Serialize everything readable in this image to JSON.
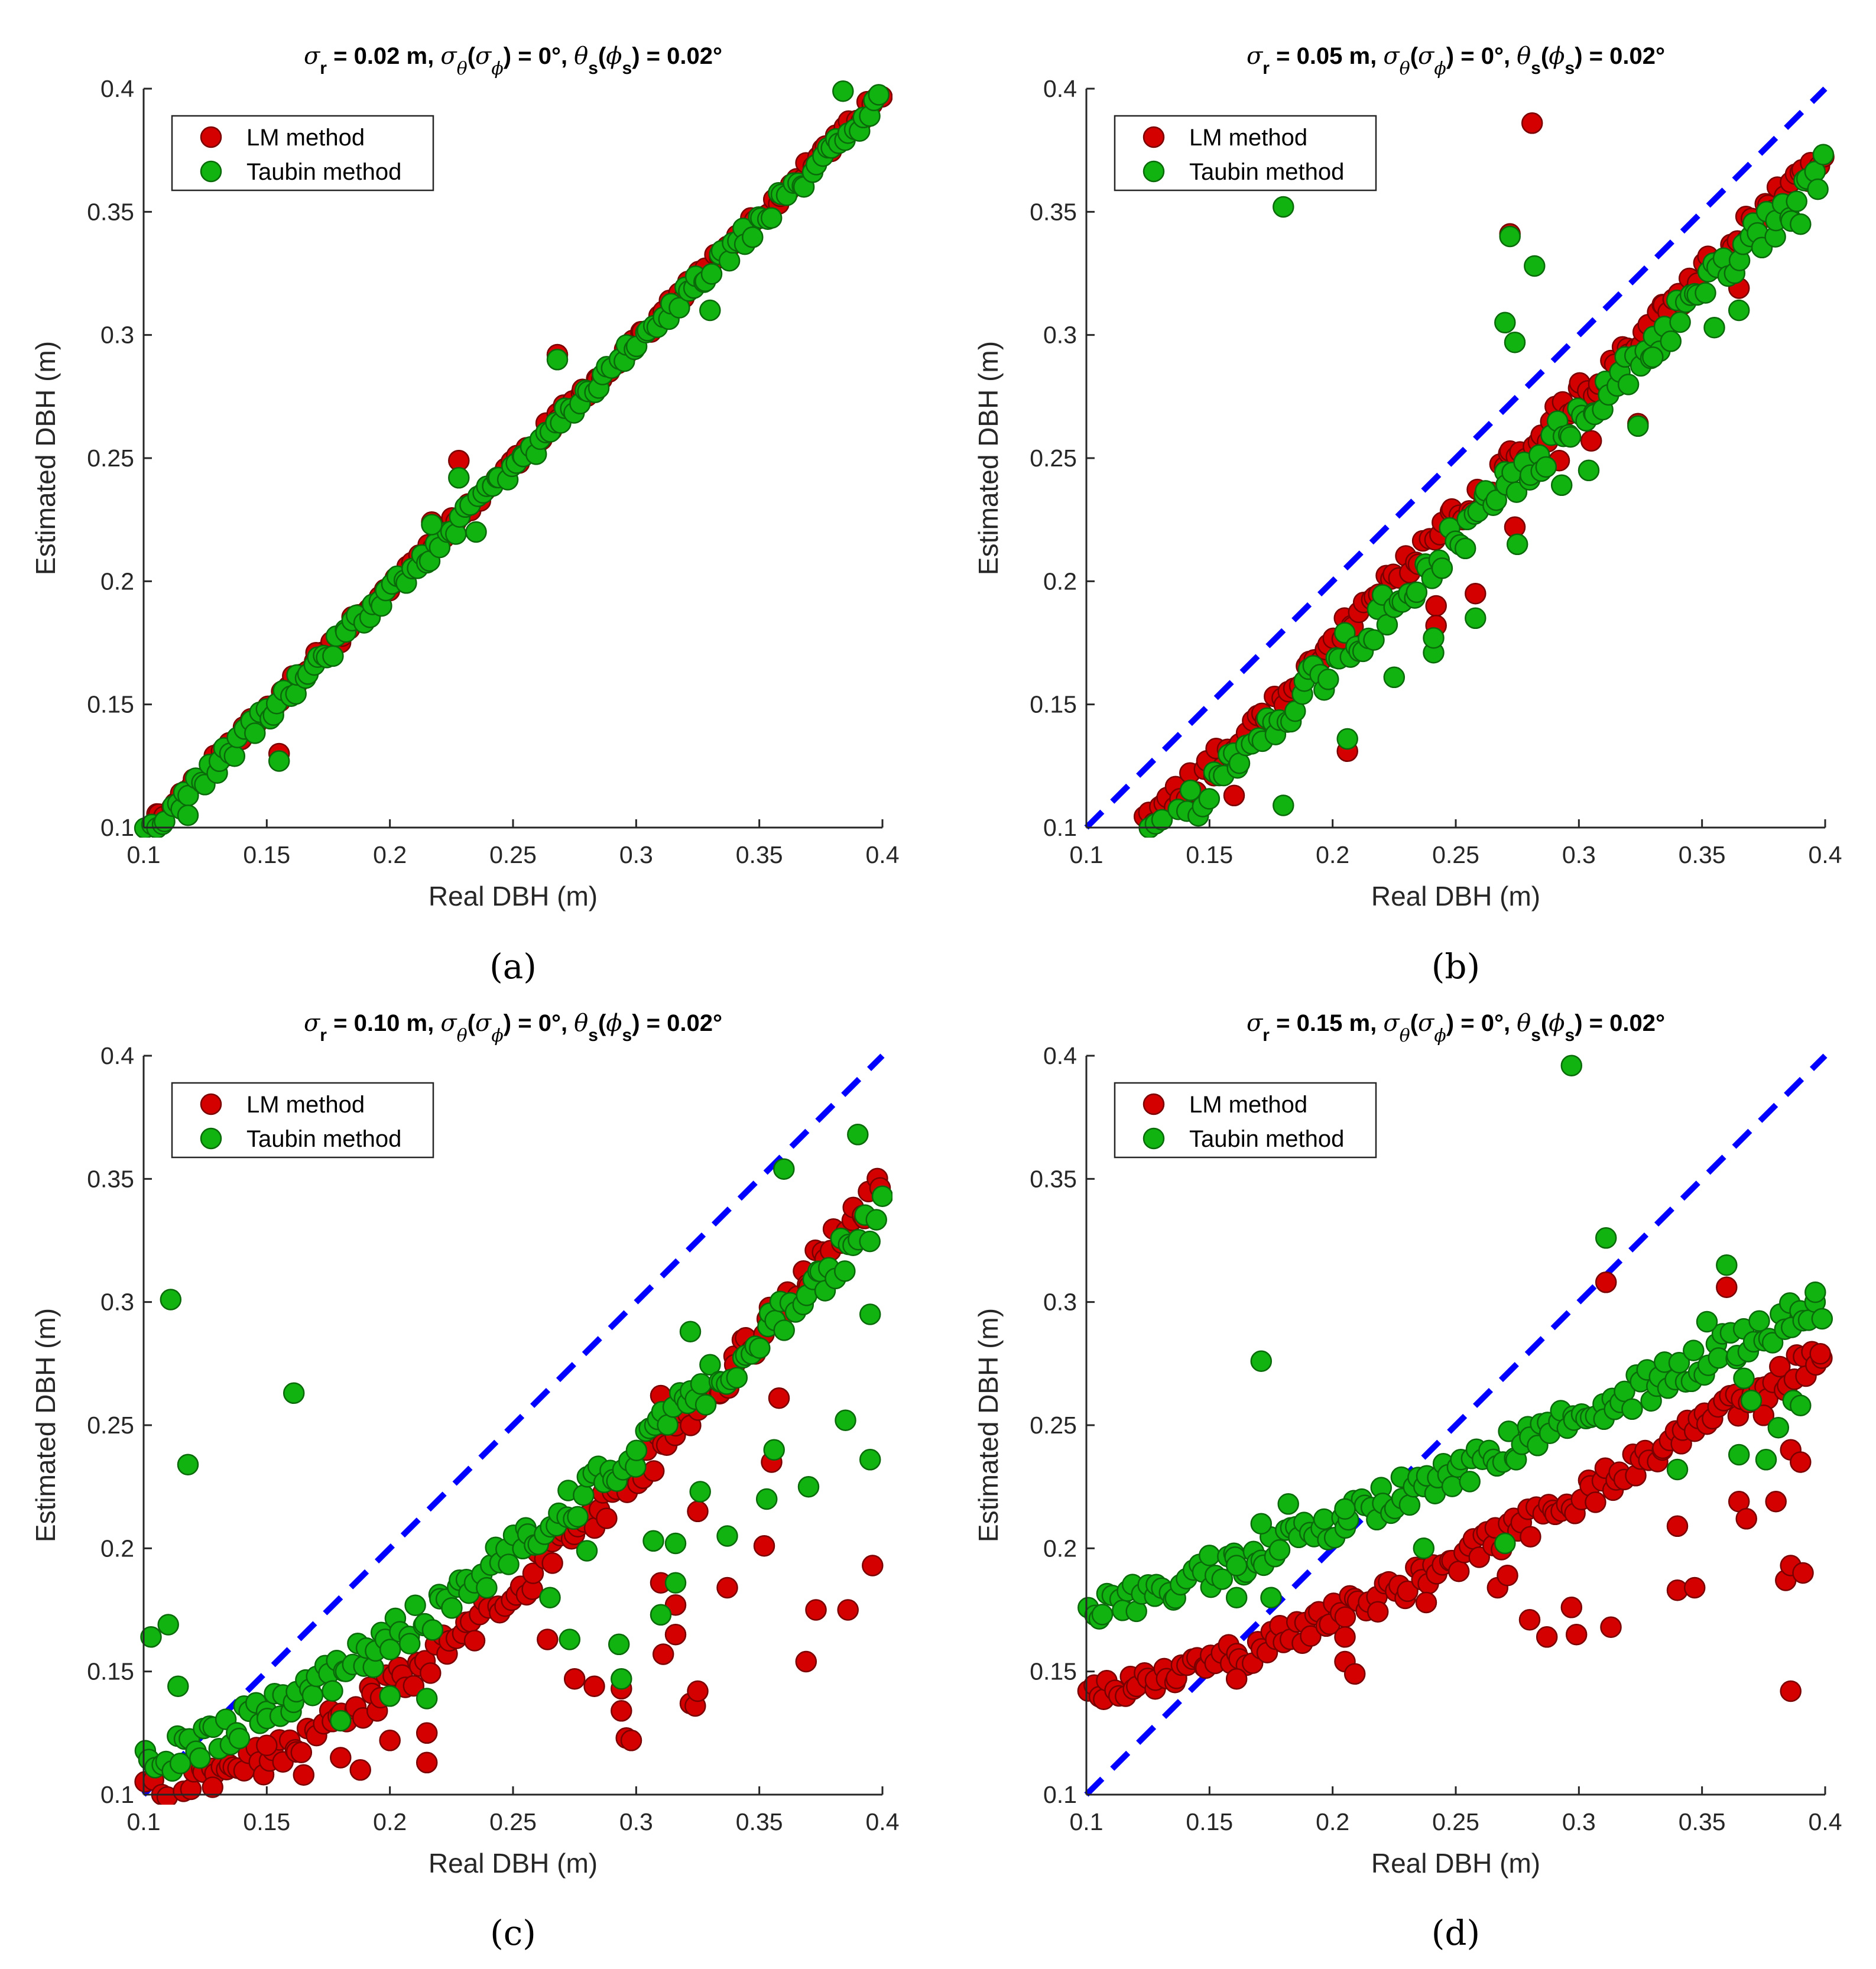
{
  "colors": {
    "lm_fill": "#d40000",
    "lm_edge": "#7a0000",
    "taubin_fill": "#11b311",
    "taubin_edge": "#0a6a0a",
    "reference_line": "#0000ff",
    "axis": "#262626"
  },
  "chart_data": [
    {
      "type": "scatter",
      "caption": "(a)",
      "title": {
        "sr": "0.02 m",
        "st": "0°",
        "ts": "0.02°"
      },
      "xlabel": "Real DBH (m)",
      "ylabel": "Estimated DBH (m)",
      "xlim": [
        0.1,
        0.4
      ],
      "ylim": [
        0.1,
        0.4
      ],
      "xticks": [
        "0.1",
        "0.15",
        "0.2",
        "0.25",
        "0.3",
        "0.35",
        "0.4"
      ],
      "yticks": [
        "0.1",
        "0.15",
        "0.2",
        "0.25",
        "0.3",
        "0.35",
        "0.4"
      ],
      "legend": {
        "position": "top-left",
        "entries": [
          "LM method",
          "Taubin method"
        ]
      },
      "reference_line": {
        "style": "dashed",
        "from": [
          0.1,
          0.1
        ],
        "to": [
          0.4,
          0.4
        ]
      },
      "series": [
        {
          "name": "LM method",
          "model": {
            "a": 0.0,
            "b": 1.0,
            "p": 1.0,
            "noise": 0.003,
            "bias": -0.002
          },
          "outliers": [
            [
              0.228,
              0.249
            ],
            [
              0.268,
              0.292
            ],
            [
              0.217,
              0.224
            ],
            [
              0.155,
              0.13
            ],
            [
              0.17,
              0.171
            ]
          ]
        },
        {
          "name": "Taubin method",
          "model": {
            "a": 0.0,
            "b": 1.0,
            "p": 1.0,
            "noise": 0.004,
            "bias": -0.004
          },
          "outliers": [
            [
              0.228,
              0.242
            ],
            [
              0.268,
              0.29
            ],
            [
              0.217,
              0.223
            ],
            [
              0.384,
              0.399
            ],
            [
              0.155,
              0.127
            ],
            [
              0.33,
              0.31
            ],
            [
              0.118,
              0.105
            ],
            [
              0.235,
              0.22
            ]
          ]
        }
      ]
    },
    {
      "type": "scatter",
      "caption": "(b)",
      "title": {
        "sr": "0.05 m",
        "st": "0°",
        "ts": "0.02°"
      },
      "xlabel": "Real DBH (m)",
      "ylabel": "Estimated DBH (m)",
      "xlim": [
        0.1,
        0.4
      ],
      "ylim": [
        0.1,
        0.4
      ],
      "xticks": [
        "0.1",
        "0.15",
        "0.2",
        "0.25",
        "0.3",
        "0.35",
        "0.4"
      ],
      "yticks": [
        "0.1",
        "0.15",
        "0.2",
        "0.25",
        "0.3",
        "0.35",
        "0.4"
      ],
      "legend": {
        "position": "top-left",
        "entries": [
          "LM method",
          "Taubin method"
        ]
      },
      "reference_line": {
        "style": "dashed",
        "from": [
          0.1,
          0.1
        ],
        "to": [
          0.4,
          0.4
        ]
      },
      "series": [
        {
          "name": "LM method",
          "model": {
            "a": 0.0,
            "b": 1.0,
            "p": 1.0,
            "noise": 0.006,
            "bias": -0.025
          },
          "outliers": [
            [
              0.281,
              0.386
            ],
            [
              0.272,
              0.341
            ],
            [
              0.206,
              0.131
            ],
            [
              0.258,
              0.195
            ],
            [
              0.274,
              0.222
            ],
            [
              0.324,
              0.264
            ],
            [
              0.305,
              0.257
            ],
            [
              0.292,
              0.249
            ],
            [
              0.365,
              0.319
            ],
            [
              0.242,
              0.19
            ],
            [
              0.242,
              0.182
            ],
            [
              0.16,
              0.113
            ]
          ]
        },
        {
          "name": "Taubin method",
          "model": {
            "a": 0.0,
            "b": 1.0,
            "p": 1.0,
            "noise": 0.008,
            "bias": -0.033
          },
          "outliers": [
            [
              0.18,
              0.352
            ],
            [
              0.272,
              0.34
            ],
            [
              0.282,
              0.328
            ],
            [
              0.27,
              0.305
            ],
            [
              0.274,
              0.297
            ],
            [
              0.18,
              0.109
            ],
            [
              0.206,
              0.136
            ],
            [
              0.225,
              0.161
            ],
            [
              0.258,
              0.185
            ],
            [
              0.241,
              0.171
            ],
            [
              0.241,
              0.177
            ],
            [
              0.293,
              0.239
            ],
            [
              0.304,
              0.245
            ],
            [
              0.324,
              0.263
            ],
            [
              0.275,
              0.215
            ],
            [
              0.365,
              0.31
            ],
            [
              0.355,
              0.303
            ],
            [
              0.33,
              0.291
            ],
            [
              0.39,
              0.345
            ]
          ]
        }
      ]
    },
    {
      "type": "scatter",
      "caption": "(c)",
      "title": {
        "sr": "0.10 m",
        "st": "0°",
        "ts": "0.02°"
      },
      "xlabel": "Real DBH (m)",
      "ylabel": "Estimated DBH (m)",
      "xlim": [
        0.1,
        0.4
      ],
      "ylim": [
        0.1,
        0.4
      ],
      "xticks": [
        "0.1",
        "0.15",
        "0.2",
        "0.25",
        "0.3",
        "0.35",
        "0.4"
      ],
      "yticks": [
        "0.1",
        "0.15",
        "0.2",
        "0.25",
        "0.3",
        "0.35",
        "0.4"
      ],
      "legend": {
        "position": "top-left",
        "entries": [
          "LM method",
          "Taubin method"
        ]
      },
      "reference_line": {
        "style": "dashed",
        "from": [
          0.1,
          0.1
        ],
        "to": [
          0.4,
          0.4
        ]
      },
      "series": [
        {
          "name": "LM method",
          "model": {
            "a": 0.1,
            "b": 0.25,
            "p": 1.6,
            "noise": 0.007,
            "bias": 0.0
          },
          "outliers": [
            [
              0.128,
              0.103
            ],
            [
              0.15,
              0.12
            ],
            [
              0.165,
              0.108
            ],
            [
              0.18,
              0.115
            ],
            [
              0.188,
              0.11
            ],
            [
              0.2,
              0.122
            ],
            [
              0.215,
              0.125
            ],
            [
              0.215,
              0.113
            ],
            [
              0.264,
              0.163
            ],
            [
              0.275,
              0.147
            ],
            [
              0.283,
              0.144
            ],
            [
              0.294,
              0.143
            ],
            [
              0.294,
              0.134
            ],
            [
              0.296,
              0.123
            ],
            [
              0.298,
              0.122
            ],
            [
              0.31,
              0.186
            ],
            [
              0.311,
              0.157
            ],
            [
              0.31,
              0.262
            ],
            [
              0.316,
              0.165
            ],
            [
              0.316,
              0.177
            ],
            [
              0.322,
              0.137
            ],
            [
              0.324,
              0.136
            ],
            [
              0.325,
              0.142
            ],
            [
              0.325,
              0.215
            ],
            [
              0.337,
              0.184
            ],
            [
              0.352,
              0.201
            ],
            [
              0.355,
              0.235
            ],
            [
              0.358,
              0.261
            ],
            [
              0.369,
              0.154
            ],
            [
              0.373,
              0.175
            ],
            [
              0.386,
              0.175
            ],
            [
              0.396,
              0.193
            ]
          ]
        },
        {
          "name": "Taubin method",
          "model": {
            "a": 0.115,
            "b": 0.22,
            "p": 1.4,
            "noise": 0.008,
            "bias": 0.0
          },
          "outliers": [
            [
              0.111,
              0.301
            ],
            [
              0.161,
              0.263
            ],
            [
              0.118,
              0.234
            ],
            [
              0.103,
              0.164
            ],
            [
              0.11,
              0.169
            ],
            [
              0.114,
              0.144
            ],
            [
              0.18,
              0.13
            ],
            [
              0.2,
              0.14
            ],
            [
              0.215,
              0.139
            ],
            [
              0.265,
              0.18
            ],
            [
              0.273,
              0.163
            ],
            [
              0.28,
              0.199
            ],
            [
              0.293,
              0.161
            ],
            [
              0.294,
              0.147
            ],
            [
              0.307,
              0.203
            ],
            [
              0.31,
              0.173
            ],
            [
              0.316,
              0.202
            ],
            [
              0.316,
              0.186
            ],
            [
              0.322,
              0.288
            ],
            [
              0.326,
              0.223
            ],
            [
              0.337,
              0.205
            ],
            [
              0.353,
              0.22
            ],
            [
              0.356,
              0.24
            ],
            [
              0.36,
              0.354
            ],
            [
              0.37,
              0.225
            ],
            [
              0.385,
              0.252
            ],
            [
              0.39,
              0.368
            ],
            [
              0.395,
              0.236
            ],
            [
              0.395,
              0.295
            ]
          ]
        }
      ]
    },
    {
      "type": "scatter",
      "caption": "(d)",
      "title": {
        "sr": "0.15 m",
        "st": "0°",
        "ts": "0.02°"
      },
      "xlabel": "Real DBH (m)",
      "ylabel": "Estimated DBH (m)",
      "xlim": [
        0.1,
        0.4
      ],
      "ylim": [
        0.1,
        0.4
      ],
      "xticks": [
        "0.1",
        "0.15",
        "0.2",
        "0.25",
        "0.3",
        "0.35",
        "0.4"
      ],
      "yticks": [
        "0.1",
        "0.15",
        "0.2",
        "0.25",
        "0.3",
        "0.35",
        "0.4"
      ],
      "legend": {
        "position": "top-left",
        "entries": [
          "LM method",
          "Taubin method"
        ]
      },
      "reference_line": {
        "style": "dashed",
        "from": [
          0.1,
          0.1
        ],
        "to": [
          0.4,
          0.4
        ]
      },
      "series": [
        {
          "name": "LM method",
          "model": {
            "a": 0.14,
            "b": 0.14,
            "p": 1.35,
            "noise": 0.006,
            "bias": 0.0
          },
          "outliers": [
            [
              0.161,
              0.147
            ],
            [
              0.205,
              0.164
            ],
            [
              0.205,
              0.154
            ],
            [
              0.209,
              0.149
            ],
            [
              0.238,
              0.178
            ],
            [
              0.267,
              0.184
            ],
            [
              0.271,
              0.189
            ],
            [
              0.28,
              0.171
            ],
            [
              0.287,
              0.164
            ],
            [
              0.297,
              0.176
            ],
            [
              0.299,
              0.165
            ],
            [
              0.313,
              0.168
            ],
            [
              0.311,
              0.308
            ],
            [
              0.34,
              0.209
            ],
            [
              0.34,
              0.183
            ],
            [
              0.347,
              0.184
            ],
            [
              0.36,
              0.306
            ],
            [
              0.365,
              0.219
            ],
            [
              0.368,
              0.212
            ],
            [
              0.38,
              0.219
            ],
            [
              0.384,
              0.187
            ],
            [
              0.386,
              0.193
            ],
            [
              0.386,
              0.142
            ],
            [
              0.391,
              0.19
            ],
            [
              0.386,
              0.24
            ],
            [
              0.39,
              0.235
            ],
            [
              0.398,
              0.279
            ],
            [
              0.375,
              0.254
            ]
          ]
        },
        {
          "name": "Taubin method",
          "model": {
            "a": 0.175,
            "b": 0.125,
            "p": 1.15,
            "noise": 0.007,
            "bias": 0.0
          },
          "outliers": [
            [
              0.297,
              0.396
            ],
            [
              0.311,
              0.326
            ],
            [
              0.171,
              0.276
            ],
            [
              0.161,
              0.193
            ],
            [
              0.161,
              0.18
            ],
            [
              0.171,
              0.21
            ],
            [
              0.182,
              0.218
            ],
            [
              0.205,
              0.216
            ],
            [
              0.175,
              0.18
            ],
            [
              0.237,
              0.2
            ],
            [
              0.27,
              0.202
            ],
            [
              0.34,
              0.232
            ],
            [
              0.36,
              0.315
            ],
            [
              0.365,
              0.238
            ],
            [
              0.367,
              0.269
            ],
            [
              0.37,
              0.26
            ],
            [
              0.376,
              0.236
            ],
            [
              0.381,
              0.249
            ],
            [
              0.387,
              0.26
            ],
            [
              0.39,
              0.258
            ],
            [
              0.352,
              0.292
            ]
          ]
        }
      ]
    }
  ]
}
